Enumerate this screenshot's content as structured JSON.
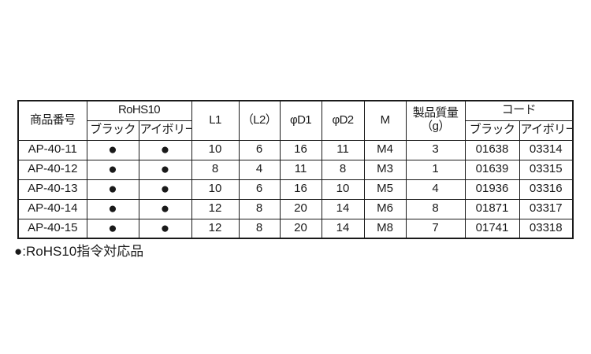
{
  "table": {
    "headers": {
      "product_no": "商品番号",
      "rohs10": "RoHS10",
      "black": "ブラック",
      "ivory": "アイボリー",
      "l1": "L1",
      "l2": "（L2）",
      "d1": "φD1",
      "d2": "φD2",
      "m": "M",
      "weight_line1": "製品質量",
      "weight_line2": "（g）",
      "code": "コード"
    },
    "rows": [
      {
        "product_no": "AP-40-11",
        "rohs_black": "●",
        "rohs_ivory": "●",
        "l1": "10",
        "l2": "6",
        "d1": "16",
        "d2": "11",
        "m": "M4",
        "weight": "3",
        "code_black": "01638",
        "code_ivory": "03314"
      },
      {
        "product_no": "AP-40-12",
        "rohs_black": "●",
        "rohs_ivory": "●",
        "l1": "8",
        "l2": "4",
        "d1": "11",
        "d2": "8",
        "m": "M3",
        "weight": "1",
        "code_black": "01639",
        "code_ivory": "03315"
      },
      {
        "product_no": "AP-40-13",
        "rohs_black": "●",
        "rohs_ivory": "●",
        "l1": "10",
        "l2": "6",
        "d1": "16",
        "d2": "10",
        "m": "M5",
        "weight": "4",
        "code_black": "01936",
        "code_ivory": "03316"
      },
      {
        "product_no": "AP-40-14",
        "rohs_black": "●",
        "rohs_ivory": "●",
        "l1": "12",
        "l2": "8",
        "d1": "20",
        "d2": "14",
        "m": "M6",
        "weight": "8",
        "code_black": "01871",
        "code_ivory": "03317"
      },
      {
        "product_no": "AP-40-15",
        "rohs_black": "●",
        "rohs_ivory": "●",
        "l1": "12",
        "l2": "8",
        "d1": "20",
        "d2": "14",
        "m": "M8",
        "weight": "7",
        "code_black": "01741",
        "code_ivory": "03318"
      }
    ]
  },
  "footnote": "●:RoHS10指令対応品",
  "colors": {
    "border": "#1a1a1a",
    "text": "#1a1a1a",
    "background": "#ffffff"
  }
}
